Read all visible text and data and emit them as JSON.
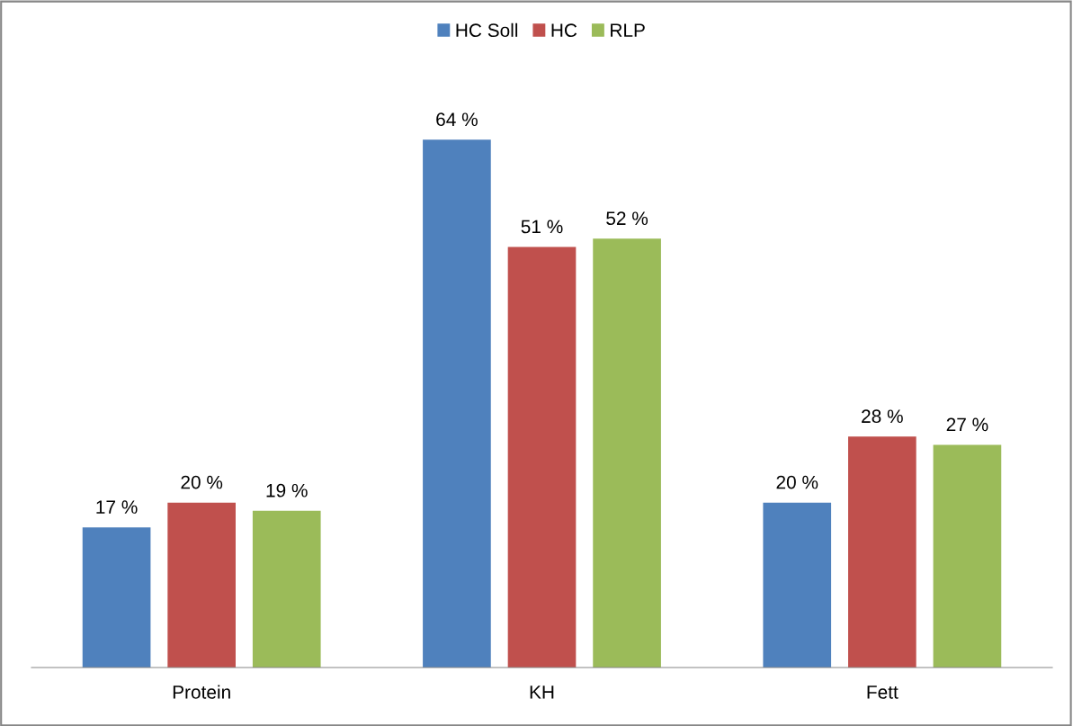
{
  "chart_data": {
    "type": "bar",
    "categories": [
      "Protein",
      "KH",
      "Fett"
    ],
    "series": [
      {
        "name": "HC Soll",
        "color": "#4f81bd",
        "values": [
          17,
          64,
          20
        ],
        "value_labels": [
          "17 %",
          "64 %",
          "20 %"
        ]
      },
      {
        "name": "HC",
        "color": "#c0504d",
        "values": [
          20,
          51,
          28
        ],
        "value_labels": [
          "20 %",
          "51 %",
          "28 %"
        ]
      },
      {
        "name": "RLP",
        "color": "#9bbb59",
        "values": [
          19,
          52,
          27
        ],
        "value_labels": [
          "19 %",
          "52 %",
          "27 %"
        ]
      }
    ],
    "legend": "top",
    "grid": false,
    "tick_labels": "x"
  }
}
